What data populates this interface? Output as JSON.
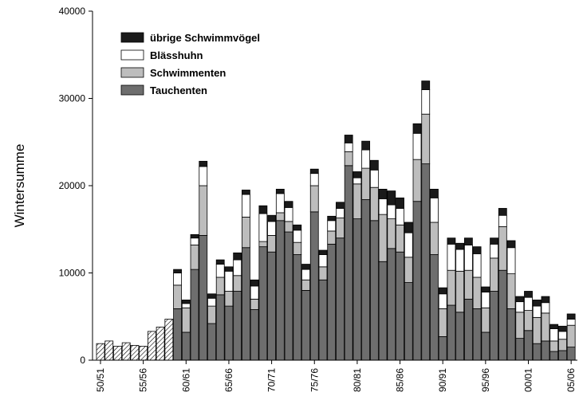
{
  "chart_data": {
    "type": "stacked-bar",
    "y_label": "Wintersumme",
    "categories": [
      "50/51",
      null,
      null,
      null,
      null,
      "55/56",
      null,
      null,
      null,
      null,
      "60/61",
      null,
      null,
      null,
      null,
      "65/66",
      null,
      null,
      null,
      null,
      "70/71",
      null,
      null,
      null,
      null,
      "75/76",
      null,
      null,
      null,
      null,
      "80/81",
      null,
      null,
      null,
      null,
      "85/86",
      null,
      null,
      null,
      null,
      "90/91",
      null,
      null,
      null,
      null,
      "95/96",
      null,
      null,
      null,
      null,
      "00/01",
      null,
      null,
      null,
      null,
      "05/06"
    ],
    "ylim": [
      0,
      40000
    ],
    "yticks": [
      0,
      10000,
      20000,
      30000,
      40000
    ],
    "series": [
      {
        "color": "#ffffff",
        "pattern": "hatch",
        "values": [
          1900,
          2200,
          1600,
          2000,
          1700,
          1600,
          3300,
          3800,
          4700,
          null,
          null,
          null,
          null,
          null,
          null,
          null,
          null,
          null,
          null,
          null,
          null,
          null,
          null,
          null,
          null,
          null,
          null,
          null,
          null,
          null,
          null,
          null,
          null,
          null,
          null,
          null,
          null,
          null,
          null,
          null,
          null,
          null,
          null,
          null,
          null,
          null,
          null,
          null,
          null,
          null,
          null,
          null,
          null,
          null,
          null,
          null
        ]
      },
      {
        "name": "Tauchenten",
        "color": "#6e6e6e",
        "values": [
          null,
          null,
          null,
          null,
          null,
          null,
          null,
          null,
          null,
          5900,
          3200,
          10400,
          14300,
          4200,
          7500,
          6200,
          7900,
          12900,
          5800,
          13000,
          12400,
          16000,
          14700,
          12100,
          8000,
          17000,
          9200,
          13300,
          14000,
          22300,
          16200,
          18400,
          16000,
          11300,
          12800,
          12400,
          8900,
          18200,
          22500,
          12100,
          2700,
          6300,
          5500,
          7000,
          5900,
          3200,
          7900,
          10300,
          5900,
          2500,
          3400,
          1900,
          2200,
          1000,
          1100,
          1500
        ]
      },
      {
        "name": "Schwimmenten",
        "color": "#bdbdbd",
        "values": [
          null,
          null,
          null,
          null,
          null,
          null,
          null,
          null,
          null,
          2700,
          2800,
          2800,
          5700,
          2000,
          2000,
          1700,
          1800,
          3500,
          1200,
          600,
          1900,
          900,
          1200,
          1400,
          1200,
          3000,
          1500,
          1500,
          2300,
          1600,
          4000,
          3600,
          3800,
          5400,
          3400,
          3100,
          2900,
          4800,
          5700,
          3700,
          3200,
          4000,
          4700,
          3300,
          3600,
          2800,
          3800,
          5000,
          4000,
          3000,
          2300,
          3000,
          3200,
          1200,
          1300,
          2500
        ]
      },
      {
        "name": "Blässhuhn",
        "color": "#ffffff",
        "values": [
          null,
          null,
          null,
          null,
          null,
          null,
          null,
          null,
          null,
          1400,
          500,
          800,
          2200,
          900,
          1500,
          2300,
          1800,
          2600,
          1500,
          3200,
          1600,
          2200,
          1600,
          1400,
          1200,
          1400,
          1400,
          1200,
          1100,
          1000,
          700,
          2100,
          2000,
          1800,
          1600,
          1900,
          2800,
          3000,
          2800,
          2800,
          1700,
          3000,
          2500,
          2900,
          2700,
          1800,
          1600,
          1300,
          3000,
          1200,
          1500,
          1300,
          1200,
          1400,
          900,
          700
        ]
      },
      {
        "name": "übrige Schwimmvögel",
        "color": "#1a1a1a",
        "values": [
          null,
          null,
          null,
          null,
          null,
          null,
          null,
          null,
          null,
          400,
          400,
          400,
          600,
          500,
          500,
          500,
          800,
          500,
          700,
          900,
          700,
          500,
          700,
          600,
          600,
          500,
          500,
          500,
          700,
          900,
          700,
          1000,
          1100,
          1100,
          1600,
          1200,
          1200,
          1100,
          1000,
          1000,
          700,
          700,
          700,
          800,
          800,
          600,
          700,
          800,
          800,
          600,
          700,
          700,
          700,
          500,
          600,
          600
        ]
      }
    ]
  }
}
